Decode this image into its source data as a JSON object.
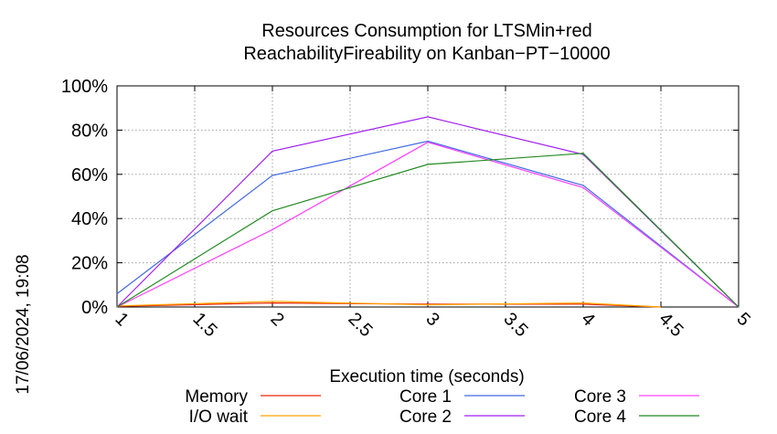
{
  "chart_data": {
    "type": "line",
    "title": "Resources Consumption for LTSMin+red",
    "subtitle": "ReachabilityFireability on Kanban−PT−10000",
    "xlabel": "Execution time (seconds)",
    "ylabel": "",
    "side_label": "17/06/2024, 19:08",
    "xlim": [
      1,
      5
    ],
    "ylim": [
      0,
      100
    ],
    "x_ticks": [
      1,
      1.5,
      2,
      2.5,
      3,
      3.5,
      4,
      4.5,
      5
    ],
    "x_tick_labels": [
      "1",
      "1.5",
      "2",
      "2.5",
      "3",
      "3.5",
      "4",
      "4.5",
      "5"
    ],
    "y_ticks": [
      0,
      20,
      40,
      60,
      80,
      100
    ],
    "y_tick_labels": [
      "0%",
      "20%",
      "40%",
      "60%",
      "80%",
      "100%"
    ],
    "grid": true,
    "legend_position": "bottom",
    "series": [
      {
        "name": "Memory",
        "color": "#e8280a",
        "x": [
          1,
          2,
          3,
          4,
          4.5
        ],
        "values": [
          0.3,
          1.8,
          1.3,
          1.3,
          0
        ]
      },
      {
        "name": "I/O wait",
        "color": "#ffa500",
        "x": [
          1,
          2,
          3,
          4,
          4.5
        ],
        "values": [
          0.5,
          2.5,
          1.0,
          1.8,
          0
        ]
      },
      {
        "name": "Core 1",
        "color": "#4169e1",
        "x": [
          1,
          2,
          3,
          4,
          5
        ],
        "values": [
          6,
          59.5,
          75,
          55,
          0
        ]
      },
      {
        "name": "Core 2",
        "color": "#a020f0",
        "x": [
          1,
          2,
          3,
          4,
          5
        ],
        "values": [
          0,
          70.5,
          86,
          69,
          0
        ]
      },
      {
        "name": "Core 3",
        "color": "#ff40ff",
        "x": [
          1,
          2,
          3,
          4,
          5
        ],
        "values": [
          0,
          35,
          74.5,
          54,
          0
        ]
      },
      {
        "name": "Core 4",
        "color": "#228b22",
        "x": [
          1,
          2,
          3,
          4,
          5
        ],
        "values": [
          0,
          43.5,
          64.5,
          69.5,
          0
        ]
      }
    ]
  }
}
